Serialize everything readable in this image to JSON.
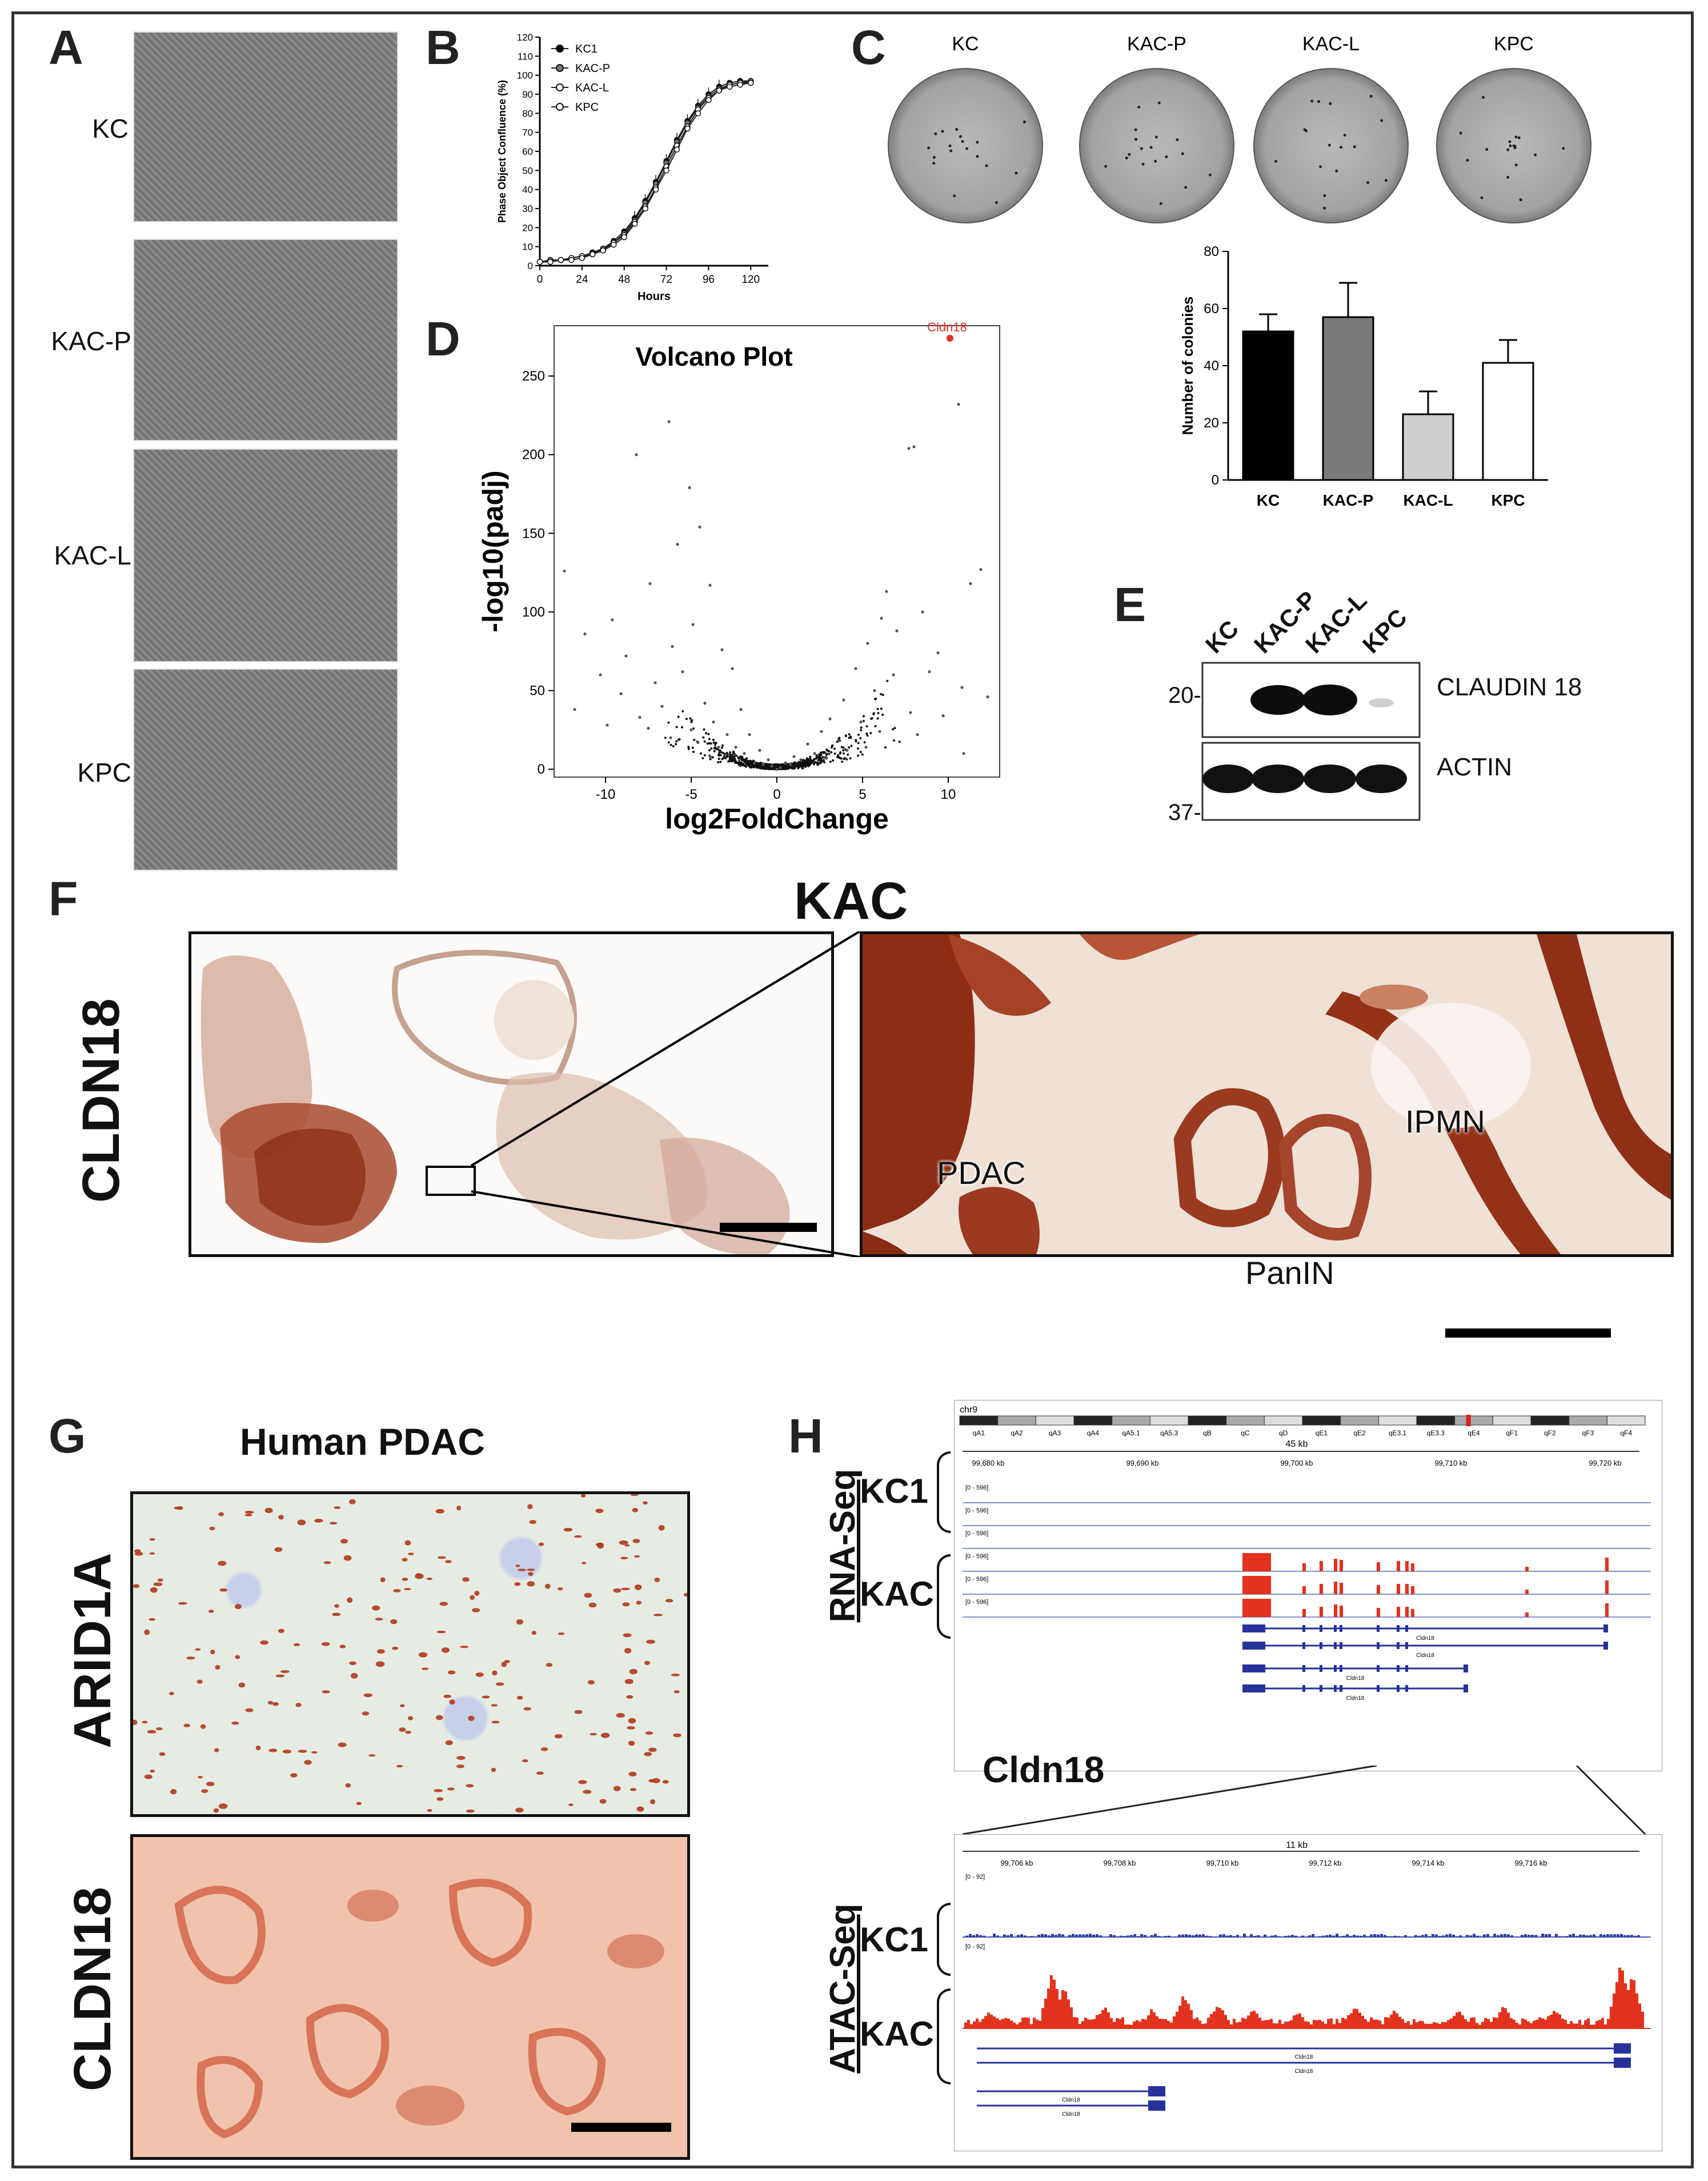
{
  "panels": {
    "A": {
      "letter": "A",
      "rows": [
        "KC",
        "KAC-P",
        "KAC-L",
        "KPC"
      ]
    },
    "B": {
      "letter": "B",
      "legend": [
        "KC1",
        "KAC-P",
        "KAC-L",
        "KPC"
      ]
    },
    "C": {
      "letter": "C",
      "plate_labels": [
        "KC",
        "KAC-P",
        "KAC-L",
        "KPC"
      ]
    },
    "D": {
      "letter": "D",
      "highlight_label": "Cldn18"
    },
    "E": {
      "letter": "E",
      "lanes": [
        "KC",
        "KAC-P",
        "KAC-L",
        "KPC"
      ],
      "band_labels": [
        "CLAUDIN 18",
        "ACTIN"
      ],
      "markers": [
        "20-",
        "37-"
      ]
    },
    "F": {
      "letter": "F",
      "title": "KAC",
      "stain": "CLDN18",
      "regions": [
        "PDAC",
        "IPMN",
        "PanIN"
      ]
    },
    "G": {
      "letter": "G",
      "title": "Human PDAC",
      "stains": [
        "ARID1A",
        "CLDN18"
      ]
    },
    "H": {
      "letter": "H",
      "rna_label": "RNA-Seq",
      "atac_label": "ATAC-Seq",
      "groups": [
        "KC1",
        "KAC"
      ],
      "gene": "Cldn18",
      "chromosome": "chr9",
      "span_top": "45 kb",
      "span_bottom": "11 kb",
      "coords_top": [
        "99,680 kb",
        "99,690 kb",
        "99,700 kb",
        "99,710 kb",
        "99,720 kb"
      ],
      "coords_bottom": [
        "99,706 kb",
        "99,708 kb",
        "99,710 kb",
        "99,712 kb",
        "99,714 kb",
        "99,716 kb"
      ],
      "cytobands": [
        "qA1",
        "qA2",
        "qA3",
        "qA4",
        "qA5.1",
        "qA5.3",
        "qB",
        "qC",
        "qD",
        "qE1",
        "qE2",
        "qE3.1",
        "qE3.3",
        "qE4",
        "qF1",
        "qF2",
        "qF3",
        "qF4"
      ],
      "track_range_rna": "[0 - 596]",
      "track_range_atac": "[0 - 92]"
    }
  },
  "chart_data": [
    {
      "id": "B",
      "type": "line",
      "title": "",
      "xlabel": "Hours",
      "ylabel": "Phase Object Confluence (%)",
      "xlim": [
        0,
        130
      ],
      "ylim": [
        0,
        120
      ],
      "xticks": [
        0,
        24,
        48,
        72,
        96,
        120
      ],
      "yticks": [
        0,
        10,
        20,
        30,
        40,
        50,
        60,
        70,
        80,
        90,
        100,
        110,
        120
      ],
      "x": [
        0,
        6,
        12,
        18,
        24,
        30,
        36,
        42,
        48,
        54,
        60,
        66,
        72,
        78,
        84,
        90,
        96,
        102,
        108,
        114,
        120
      ],
      "series": [
        {
          "name": "KC1",
          "values": [
            2,
            3,
            3,
            4,
            5,
            7,
            9,
            13,
            18,
            25,
            34,
            44,
            55,
            66,
            76,
            84,
            90,
            94,
            96,
            97,
            97
          ]
        },
        {
          "name": "KAC-P",
          "values": [
            2,
            3,
            3,
            4,
            5,
            6,
            9,
            12,
            17,
            24,
            33,
            43,
            54,
            65,
            75,
            83,
            89,
            93,
            95,
            96,
            97
          ]
        },
        {
          "name": "KAC-L",
          "values": [
            2,
            2,
            3,
            4,
            5,
            6,
            8,
            12,
            16,
            23,
            31,
            41,
            52,
            63,
            73,
            82,
            88,
            92,
            95,
            96,
            96
          ]
        },
        {
          "name": "KPC",
          "values": [
            2,
            2,
            3,
            3,
            4,
            6,
            8,
            11,
            15,
            22,
            30,
            40,
            50,
            61,
            72,
            80,
            87,
            92,
            94,
            95,
            96
          ]
        }
      ]
    },
    {
      "id": "C",
      "type": "bar",
      "title": "",
      "xlabel": "",
      "ylabel": "Number of colonies",
      "ylim": [
        0,
        80
      ],
      "yticks": [
        0,
        20,
        40,
        60,
        80
      ],
      "categories": [
        "KC",
        "KAC-P",
        "KAC-L",
        "KPC"
      ],
      "values": [
        52,
        57,
        23,
        41
      ],
      "errors": [
        6,
        12,
        8,
        8
      ],
      "colors": [
        "#000000",
        "#7a7a7a",
        "#cfcfcf",
        "#ffffff"
      ]
    },
    {
      "id": "D",
      "type": "scatter",
      "title": "Volcano Plot",
      "xlabel": "log2FoldChange",
      "ylabel": "-log10(padj)",
      "xlim": [
        -13,
        13
      ],
      "ylim": [
        -5,
        282
      ],
      "xticks": [
        -10,
        -5,
        0,
        5,
        10
      ],
      "yticks": [
        0,
        50,
        100,
        150,
        200,
        250
      ],
      "highlight": {
        "label": "Cldn18",
        "x": 10.1,
        "y": 274,
        "color": "#e0301e"
      },
      "points": [
        [
          -8.2,
          200
        ],
        [
          -6.3,
          221
        ],
        [
          -5.1,
          179
        ],
        [
          -4.5,
          154
        ],
        [
          -5.8,
          143
        ],
        [
          -7.4,
          118
        ],
        [
          -9.6,
          95
        ],
        [
          -11.2,
          86
        ],
        [
          -3.9,
          117
        ],
        [
          -4.9,
          92
        ],
        [
          -6.1,
          78
        ],
        [
          -8.8,
          72
        ],
        [
          -10.3,
          60
        ],
        [
          -7.1,
          55
        ],
        [
          -3.2,
          76
        ],
        [
          -2.6,
          64
        ],
        [
          -5.5,
          62
        ],
        [
          -9.1,
          48
        ],
        [
          -11.8,
          38
        ],
        [
          -12.4,
          126
        ],
        [
          -6.7,
          40
        ],
        [
          -4.2,
          42
        ],
        [
          -2.1,
          38
        ],
        [
          -3.7,
          30
        ],
        [
          -8.0,
          33
        ],
        [
          -1.6,
          22
        ],
        [
          -2.9,
          22
        ],
        [
          -5.0,
          25
        ],
        [
          -7.5,
          26
        ],
        [
          -1.0,
          12
        ],
        [
          -0.5,
          6
        ],
        [
          -1.9,
          10
        ],
        [
          -3.4,
          14
        ],
        [
          -4.6,
          17
        ],
        [
          -6.2,
          20
        ],
        [
          -9.9,
          28
        ],
        [
          -2.4,
          14
        ],
        [
          -3.9,
          8
        ],
        [
          -1.3,
          4
        ],
        [
          -0.3,
          2
        ],
        [
          7.7,
          204
        ],
        [
          8.0,
          205
        ],
        [
          10.6,
          232
        ],
        [
          6.4,
          113
        ],
        [
          8.5,
          100
        ],
        [
          6.1,
          96
        ],
        [
          7.0,
          88
        ],
        [
          5.3,
          80
        ],
        [
          9.4,
          74
        ],
        [
          11.9,
          127
        ],
        [
          11.3,
          118
        ],
        [
          4.6,
          64
        ],
        [
          8.9,
          62
        ],
        [
          10.8,
          52
        ],
        [
          6.8,
          60
        ],
        [
          5.7,
          50
        ],
        [
          3.9,
          44
        ],
        [
          12.3,
          46
        ],
        [
          7.8,
          36
        ],
        [
          3.1,
          32
        ],
        [
          4.9,
          30
        ],
        [
          9.7,
          34
        ],
        [
          2.6,
          24
        ],
        [
          6.0,
          24
        ],
        [
          1.8,
          16
        ],
        [
          3.6,
          18
        ],
        [
          8.2,
          22
        ],
        [
          1.0,
          8
        ],
        [
          0.5,
          4
        ],
        [
          2.2,
          10
        ],
        [
          4.1,
          12
        ],
        [
          5.2,
          14
        ],
        [
          0.2,
          1
        ],
        [
          0.8,
          3
        ],
        [
          1.4,
          6
        ],
        [
          -0.8,
          3
        ],
        [
          0.0,
          0
        ],
        [
          2.9,
          7
        ],
        [
          -2.2,
          6
        ],
        [
          10.9,
          10
        ]
      ]
    }
  ]
}
